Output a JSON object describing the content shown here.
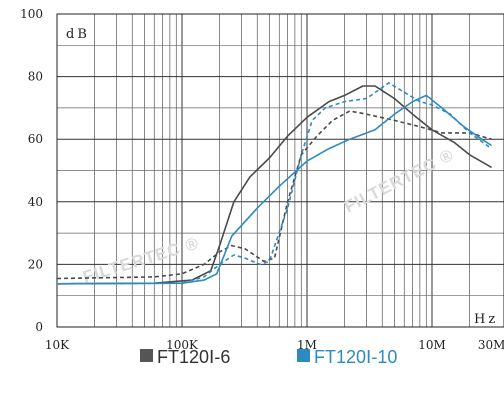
{
  "chart_data": {
    "type": "line",
    "x_scale": "log",
    "xlim": [
      10000,
      30000000
    ],
    "ylim": [
      0,
      100
    ],
    "grid": true,
    "legend_position": "bottom",
    "y_unit": "dB",
    "x_unit": "Hz",
    "y_ticks": [
      {
        "value": 0,
        "label": "0"
      },
      {
        "value": 20,
        "label": "20"
      },
      {
        "value": 40,
        "label": "40"
      },
      {
        "value": 60,
        "label": "60"
      },
      {
        "value": 80,
        "label": "80"
      },
      {
        "value": 100,
        "label": "100"
      }
    ],
    "x_ticks": [
      {
        "value": 10000,
        "label": "10K"
      },
      {
        "value": 100000,
        "label": "100K"
      },
      {
        "value": 1000000,
        "label": "1M"
      },
      {
        "value": 10000000,
        "label": "10M"
      },
      {
        "value": 30000000,
        "label": "30M"
      }
    ],
    "series": [
      {
        "name": "FT120Ⅰ-6",
        "color": "#4a4a4a",
        "style": "solid",
        "points": [
          [
            10000,
            13.8
          ],
          [
            60000,
            14
          ],
          [
            120000,
            15
          ],
          [
            170000,
            18
          ],
          [
            200000,
            26
          ],
          [
            260000,
            40
          ],
          [
            350000,
            48
          ],
          [
            500000,
            54
          ],
          [
            700000,
            61
          ],
          [
            1000000,
            67
          ],
          [
            1500000,
            72
          ],
          [
            2000000,
            74
          ],
          [
            2800000,
            77
          ],
          [
            3500000,
            77
          ],
          [
            5000000,
            73
          ],
          [
            7000000,
            68
          ],
          [
            10000000,
            63
          ],
          [
            15000000,
            59
          ],
          [
            20000000,
            55
          ],
          [
            30000000,
            51
          ]
        ]
      },
      {
        "name": "FT120Ⅰ-6",
        "color": "#4a4a4a",
        "style": "dashed",
        "points": [
          [
            10000,
            15.5
          ],
          [
            60000,
            16
          ],
          [
            100000,
            17
          ],
          [
            150000,
            20
          ],
          [
            200000,
            24
          ],
          [
            250000,
            26
          ],
          [
            320000,
            25
          ],
          [
            450000,
            21
          ],
          [
            550000,
            22
          ],
          [
            700000,
            40
          ],
          [
            900000,
            55
          ],
          [
            1200000,
            61
          ],
          [
            1600000,
            66
          ],
          [
            2200000,
            69
          ],
          [
            3000000,
            68
          ],
          [
            5000000,
            66
          ],
          [
            8000000,
            64
          ],
          [
            12000000,
            62
          ],
          [
            20000000,
            62
          ],
          [
            30000000,
            60
          ]
        ]
      },
      {
        "name": "FT120Ⅰ-10",
        "color": "#2e8bc0",
        "style": "solid",
        "points": [
          [
            10000,
            13.8
          ],
          [
            100000,
            14
          ],
          [
            150000,
            15
          ],
          [
            190000,
            17
          ],
          [
            250000,
            29
          ],
          [
            400000,
            38
          ],
          [
            600000,
            45
          ],
          [
            1000000,
            53
          ],
          [
            1500000,
            57
          ],
          [
            2200000,
            60
          ],
          [
            3500000,
            63
          ],
          [
            5000000,
            68
          ],
          [
            7000000,
            72
          ],
          [
            9000000,
            74
          ],
          [
            12000000,
            70
          ],
          [
            18000000,
            64
          ],
          [
            25000000,
            60
          ],
          [
            30000000,
            58
          ]
        ]
      },
      {
        "name": "FT120Ⅰ-10",
        "color": "#2e8bc0",
        "style": "dashed",
        "points": [
          [
            10000,
            13.8
          ],
          [
            100000,
            14
          ],
          [
            150000,
            16
          ],
          [
            200000,
            20
          ],
          [
            260000,
            23
          ],
          [
            320000,
            22
          ],
          [
            420000,
            20
          ],
          [
            500000,
            21
          ],
          [
            700000,
            38
          ],
          [
            900000,
            55
          ],
          [
            1100000,
            66
          ],
          [
            1400000,
            70
          ],
          [
            2000000,
            72
          ],
          [
            3000000,
            73
          ],
          [
            4500000,
            78
          ],
          [
            6000000,
            75
          ],
          [
            8000000,
            72
          ],
          [
            10000000,
            71
          ],
          [
            14000000,
            68
          ],
          [
            20000000,
            62
          ],
          [
            30000000,
            57
          ]
        ]
      }
    ],
    "legend": [
      {
        "label": "FT120Ⅰ-6",
        "color": "#555555",
        "text_color": "#333333"
      },
      {
        "label": "FT120Ⅰ-10",
        "color": "#2e8bc0",
        "text_color": "#2e8bc0"
      }
    ],
    "watermark": [
      "FILTERTEC ®",
      "FILTERTEC ®"
    ]
  }
}
